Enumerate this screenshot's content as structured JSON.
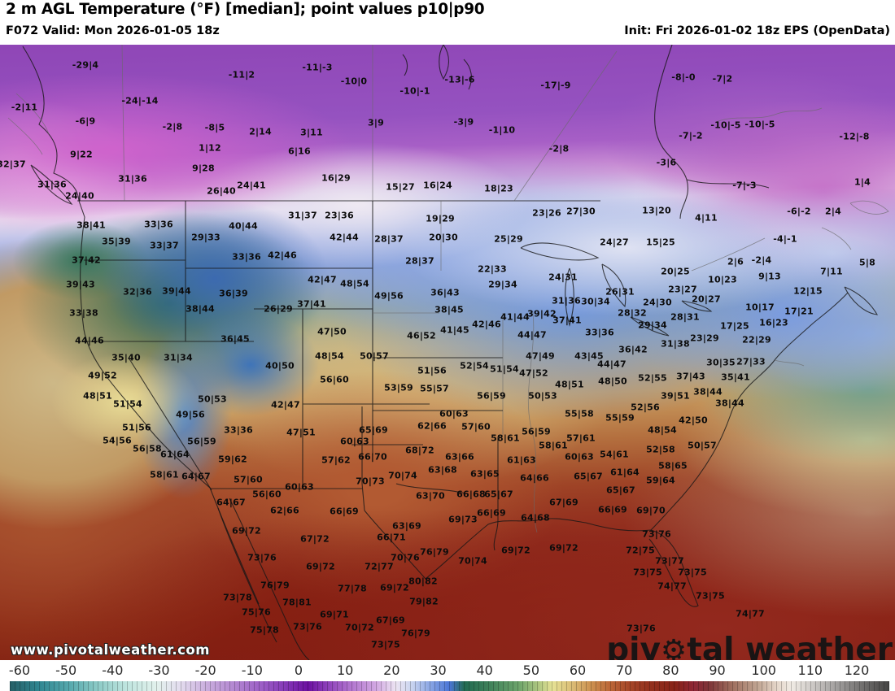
{
  "header": {
    "title": "2 m AGL Temperature (°F) [median]; point values p10|p90",
    "valid_label": "F072 Valid: Mon 2026-01-05 18z",
    "init_label": "Init: Fri 2026-01-02 18z EPS (OpenData)"
  },
  "watermarks": {
    "site_url": "www.pivotalweather.com",
    "brand_pre": "piv",
    "brand_gear_icon": "⚙",
    "brand_post": "tal weather"
  },
  "colorbar": {
    "unit": "°F",
    "ticks": [
      -60,
      -50,
      -40,
      -30,
      -20,
      -10,
      0,
      10,
      20,
      30,
      40,
      50,
      60,
      70,
      80,
      90,
      100,
      110,
      120
    ],
    "stops": [
      {
        "t": -60,
        "c": "#265f66"
      },
      {
        "t": -54,
        "c": "#2f8691"
      },
      {
        "t": -48,
        "c": "#55a8ad"
      },
      {
        "t": -42,
        "c": "#8ccac6"
      },
      {
        "t": -36,
        "c": "#bfe5df"
      },
      {
        "t": -30,
        "c": "#e2f1ec"
      },
      {
        "t": -25,
        "c": "#e3dcee"
      },
      {
        "t": -20,
        "c": "#cbb0de"
      },
      {
        "t": -14,
        "c": "#b286d1"
      },
      {
        "t": -8,
        "c": "#9a5ac5"
      },
      {
        "t": -3,
        "c": "#8133b4"
      },
      {
        "t": 1,
        "c": "#6c10a1"
      },
      {
        "t": 5,
        "c": "#8d3fba"
      },
      {
        "t": 10,
        "c": "#b377d0"
      },
      {
        "t": 15,
        "c": "#d2a8e2"
      },
      {
        "t": 19,
        "c": "#ece4f2"
      },
      {
        "t": 22,
        "c": "#ccd6f0"
      },
      {
        "t": 26,
        "c": "#8aa6e4"
      },
      {
        "t": 30,
        "c": "#4a75d6"
      },
      {
        "t": 33,
        "c": "#226b52"
      },
      {
        "t": 38,
        "c": "#3d8059"
      },
      {
        "t": 44,
        "c": "#6ba36b"
      },
      {
        "t": 48,
        "c": "#abc57f"
      },
      {
        "t": 51,
        "c": "#e6e295"
      },
      {
        "t": 55,
        "c": "#dbbd76"
      },
      {
        "t": 59,
        "c": "#cd9150"
      },
      {
        "t": 63,
        "c": "#bb6536"
      },
      {
        "t": 67,
        "c": "#a54527"
      },
      {
        "t": 71,
        "c": "#93301d"
      },
      {
        "t": 76,
        "c": "#882318"
      },
      {
        "t": 80,
        "c": "#8e2736"
      },
      {
        "t": 83,
        "c": "#7e3337"
      },
      {
        "t": 88,
        "c": "#a07060"
      },
      {
        "t": 93,
        "c": "#c0a491"
      },
      {
        "t": 97,
        "c": "#e5d6c9"
      },
      {
        "t": 100,
        "c": "#f0ebe4"
      },
      {
        "t": 104,
        "c": "#cfcbc8"
      },
      {
        "t": 109,
        "c": "#a3a1a0"
      },
      {
        "t": 114,
        "c": "#757372"
      },
      {
        "t": 120,
        "c": "#454443"
      }
    ]
  },
  "map": {
    "point_values_format": "p10|p90",
    "point_values": [
      [
        "-29|4",
        105,
        80
      ],
      [
        "-11|2",
        297,
        92
      ],
      [
        "-24|-14",
        172,
        124
      ],
      [
        "-2|11",
        30,
        132
      ],
      [
        "-6|9",
        105,
        149
      ],
      [
        "-2|8",
        212,
        156
      ],
      [
        "-8|5",
        264,
        157
      ],
      [
        "2|14",
        320,
        162
      ],
      [
        "1|12",
        258,
        182
      ],
      [
        "9|22",
        100,
        190
      ],
      [
        "32|37",
        14,
        202
      ],
      [
        "9|28",
        250,
        207
      ],
      [
        "31|36",
        64,
        227
      ],
      [
        "31|36",
        163,
        220
      ],
      [
        "26|40",
        272,
        235
      ],
      [
        "24|41",
        309,
        228
      ],
      [
        "24|40",
        98,
        241
      ],
      [
        "-11|-3",
        390,
        83
      ],
      [
        "-10|0",
        435,
        100
      ],
      [
        "-13|-6",
        565,
        98
      ],
      [
        "-10|-1",
        510,
        112
      ],
      [
        "-17|-9",
        683,
        105
      ],
      [
        "3|9",
        462,
        151
      ],
      [
        "-3|9",
        570,
        150
      ],
      [
        "-1|10",
        617,
        160
      ],
      [
        "3|11",
        383,
        163
      ],
      [
        "-2|8",
        687,
        183
      ],
      [
        "6|16",
        368,
        186
      ],
      [
        "16|29",
        413,
        219
      ],
      [
        "15|27",
        492,
        230
      ],
      [
        "16|24",
        538,
        228
      ],
      [
        "18|23",
        613,
        232
      ],
      [
        "-8|-0",
        840,
        95
      ],
      [
        "-7|2",
        888,
        97
      ],
      [
        "-10|-5",
        892,
        154
      ],
      [
        "-10|-5",
        934,
        153
      ],
      [
        "-7|-2",
        849,
        167
      ],
      [
        "-12|-8",
        1050,
        168
      ],
      [
        "-3|6",
        819,
        200
      ],
      [
        "-7|-3",
        915,
        228
      ],
      [
        "1|4",
        1060,
        224
      ],
      [
        "-6|-2",
        982,
        260
      ],
      [
        "2|4",
        1024,
        260
      ],
      [
        "-4|-1",
        965,
        294
      ],
      [
        "13|20",
        807,
        259
      ],
      [
        "4|11",
        868,
        268
      ],
      [
        "15|25",
        812,
        298
      ],
      [
        "24|27",
        755,
        298
      ],
      [
        "5|8",
        1066,
        323
      ],
      [
        "2|6",
        904,
        322
      ],
      [
        "-2|4",
        936,
        320
      ],
      [
        "7|11",
        1022,
        334
      ],
      [
        "9|13",
        946,
        340
      ],
      [
        "20|25",
        830,
        334
      ],
      [
        "10|23",
        888,
        344
      ],
      [
        "12|15",
        993,
        358
      ],
      [
        "26|31",
        762,
        359
      ],
      [
        "23|27",
        839,
        356
      ],
      [
        "20|27",
        868,
        368
      ],
      [
        "24|30",
        808,
        372
      ],
      [
        "30|34",
        732,
        371
      ],
      [
        "28|32",
        777,
        385
      ],
      [
        "29|34",
        802,
        400
      ],
      [
        "28|31",
        842,
        390
      ],
      [
        "33|36",
        737,
        409
      ],
      [
        "17|25",
        903,
        401
      ],
      [
        "10|17",
        934,
        378
      ],
      [
        "17|21",
        982,
        383
      ],
      [
        "16|23",
        951,
        397
      ],
      [
        "22|29",
        930,
        418
      ],
      [
        "23|29",
        866,
        416
      ],
      [
        "31|38",
        830,
        423
      ],
      [
        "36|42",
        778,
        430
      ],
      [
        "38|41",
        112,
        277
      ],
      [
        "33|36",
        195,
        276
      ],
      [
        "40|44",
        299,
        278
      ],
      [
        "35|39",
        143,
        297
      ],
      [
        "29|33",
        253,
        292
      ],
      [
        "33|37",
        202,
        302
      ],
      [
        "37|42",
        106,
        320
      ],
      [
        "33|36",
        303,
        316
      ],
      [
        "42|46",
        347,
        314
      ],
      [
        "39|43",
        99,
        350
      ],
      [
        "32|36",
        169,
        359
      ],
      [
        "39|44",
        217,
        358
      ],
      [
        "36|39",
        287,
        361
      ],
      [
        "38|44",
        246,
        380
      ],
      [
        "26|29",
        342,
        380
      ],
      [
        "33|38",
        103,
        385
      ],
      [
        "44|46",
        110,
        419
      ],
      [
        "36|45",
        289,
        417
      ],
      [
        "31|37",
        372,
        265
      ],
      [
        "23|36",
        417,
        265
      ],
      [
        "19|29",
        541,
        269
      ],
      [
        "42|44",
        423,
        292
      ],
      [
        "28|37",
        478,
        294
      ],
      [
        "20|30",
        545,
        292
      ],
      [
        "25|29",
        625,
        294
      ],
      [
        "23|26",
        672,
        262
      ],
      [
        "27|30",
        714,
        260
      ],
      [
        "28|37",
        516,
        321
      ],
      [
        "22|33",
        605,
        331
      ],
      [
        "29|34",
        618,
        350
      ],
      [
        "24|31",
        692,
        341
      ],
      [
        "42|47",
        396,
        344
      ],
      [
        "48|54",
        436,
        349
      ],
      [
        "49|56",
        478,
        364
      ],
      [
        "36|43",
        547,
        360
      ],
      [
        "37|41",
        383,
        374
      ],
      [
        "38|45",
        552,
        381
      ],
      [
        "31|36",
        696,
        370
      ],
      [
        "39|42",
        666,
        386
      ],
      [
        "41|44",
        633,
        390
      ],
      [
        "37|41",
        697,
        394
      ],
      [
        "42|46",
        598,
        399
      ],
      [
        "41|45",
        559,
        406
      ],
      [
        "44|47",
        654,
        412
      ],
      [
        "47|50",
        408,
        408
      ],
      [
        "46|52",
        518,
        413
      ],
      [
        "35|40",
        155,
        440
      ],
      [
        "31|34",
        219,
        440
      ],
      [
        "40|50",
        344,
        450
      ],
      [
        "49|52",
        126,
        462
      ],
      [
        "48|51",
        120,
        487
      ],
      [
        "51|54",
        157,
        497
      ],
      [
        "50|53",
        261,
        491
      ],
      [
        "42|47",
        351,
        498
      ],
      [
        "49|56",
        234,
        510
      ],
      [
        "51|56",
        168,
        526
      ],
      [
        "33|36",
        293,
        529
      ],
      [
        "54|56",
        144,
        542
      ],
      [
        "56|59",
        248,
        543
      ],
      [
        "56|58",
        181,
        552
      ],
      [
        "61|64",
        215,
        559
      ],
      [
        "59|62",
        286,
        565
      ],
      [
        "58|61",
        202,
        584
      ],
      [
        "64|67",
        241,
        586
      ],
      [
        "57|60",
        305,
        590
      ],
      [
        "56|60",
        328,
        608
      ],
      [
        "64|67",
        284,
        618
      ],
      [
        "48|54",
        405,
        438
      ],
      [
        "50|57",
        460,
        438
      ],
      [
        "51|56",
        531,
        456
      ],
      [
        "52|54",
        583,
        450
      ],
      [
        "51|54",
        620,
        454
      ],
      [
        "47|49",
        664,
        438
      ],
      [
        "47|52",
        656,
        459
      ],
      [
        "43|45",
        724,
        438
      ],
      [
        "56|60",
        411,
        467
      ],
      [
        "48|51",
        700,
        473
      ],
      [
        "53|59",
        490,
        477
      ],
      [
        "55|57",
        534,
        478
      ],
      [
        "56|59",
        604,
        487
      ],
      [
        "50|53",
        667,
        487
      ],
      [
        "55|58",
        712,
        509
      ],
      [
        "60|63",
        558,
        509
      ],
      [
        "62|66",
        531,
        524
      ],
      [
        "57|60",
        585,
        525
      ],
      [
        "65|69",
        459,
        529
      ],
      [
        "47|51",
        370,
        532
      ],
      [
        "58|61",
        621,
        539
      ],
      [
        "56|59",
        659,
        531
      ],
      [
        "60|63",
        436,
        543
      ],
      [
        "58|61",
        680,
        548
      ],
      [
        "57|61",
        714,
        539
      ],
      [
        "66|70",
        458,
        562
      ],
      [
        "57|62",
        413,
        566
      ],
      [
        "68|72",
        516,
        554
      ],
      [
        "63|66",
        565,
        562
      ],
      [
        "61|63",
        641,
        566
      ],
      [
        "60|63",
        712,
        562
      ],
      [
        "63|68",
        544,
        578
      ],
      [
        "63|65",
        596,
        583
      ],
      [
        "70|74",
        495,
        585
      ],
      [
        "70|73",
        455,
        592
      ],
      [
        "64|66",
        657,
        588
      ],
      [
        "60|63",
        368,
        599
      ],
      [
        "63|70",
        529,
        610
      ],
      [
        "66|68",
        579,
        608
      ],
      [
        "65|67",
        613,
        608
      ],
      [
        "67|69",
        693,
        618
      ],
      [
        "65|67",
        723,
        586
      ],
      [
        "44|47",
        752,
        448
      ],
      [
        "48|50",
        753,
        469
      ],
      [
        "52|55",
        802,
        465
      ],
      [
        "37|43",
        849,
        463
      ],
      [
        "30|35",
        886,
        446
      ],
      [
        "27|33",
        923,
        445
      ],
      [
        "35|41",
        904,
        464
      ],
      [
        "38|44",
        870,
        482
      ],
      [
        "39|51",
        830,
        487
      ],
      [
        "38|44",
        897,
        496
      ],
      [
        "52|56",
        793,
        501
      ],
      [
        "55|59",
        762,
        514
      ],
      [
        "42|50",
        852,
        517
      ],
      [
        "48|54",
        814,
        529
      ],
      [
        "50|57",
        863,
        548
      ],
      [
        "52|58",
        812,
        553
      ],
      [
        "54|61",
        755,
        559
      ],
      [
        "58|65",
        827,
        573
      ],
      [
        "61|64",
        768,
        581
      ],
      [
        "59|64",
        812,
        591
      ],
      [
        "65|67",
        763,
        603
      ],
      [
        "62|66",
        350,
        628
      ],
      [
        "69|72",
        303,
        653
      ],
      [
        "73|76",
        322,
        686
      ],
      [
        "76|79",
        338,
        720
      ],
      [
        "73|78",
        292,
        735
      ],
      [
        "78|81",
        365,
        741
      ],
      [
        "75|76",
        315,
        753
      ],
      [
        "75|78",
        325,
        775
      ],
      [
        "66|69",
        423,
        629
      ],
      [
        "63|69",
        500,
        647
      ],
      [
        "69|73",
        569,
        639
      ],
      [
        "66|69",
        604,
        631
      ],
      [
        "64|68",
        658,
        637
      ],
      [
        "66|71",
        481,
        661
      ],
      [
        "67|72",
        387,
        663
      ],
      [
        "76|79",
        534,
        679
      ],
      [
        "69|72",
        634,
        677
      ],
      [
        "69|72",
        693,
        674
      ],
      [
        "70|76",
        498,
        686
      ],
      [
        "70|74",
        581,
        690
      ],
      [
        "72|77",
        466,
        697
      ],
      [
        "69|72",
        394,
        697
      ],
      [
        "80|82",
        520,
        715
      ],
      [
        "77|78",
        433,
        724
      ],
      [
        "69|72",
        485,
        723
      ],
      [
        "79|82",
        521,
        740
      ],
      [
        "69|71",
        411,
        756
      ],
      [
        "73|76",
        378,
        771
      ],
      [
        "70|72",
        442,
        772
      ],
      [
        "67|69",
        480,
        763
      ],
      [
        "76|79",
        511,
        779
      ],
      [
        "73|75",
        474,
        793
      ],
      [
        "66|69",
        753,
        627
      ],
      [
        "69|70",
        800,
        628
      ],
      [
        "73|76",
        807,
        657
      ],
      [
        "72|75",
        787,
        677
      ],
      [
        "73|77",
        823,
        690
      ],
      [
        "73|75",
        796,
        704
      ],
      [
        "73|75",
        851,
        704
      ],
      [
        "74|77",
        826,
        721
      ],
      [
        "73|75",
        873,
        733
      ],
      [
        "74|77",
        922,
        755
      ],
      [
        "73|76",
        788,
        773
      ]
    ]
  }
}
